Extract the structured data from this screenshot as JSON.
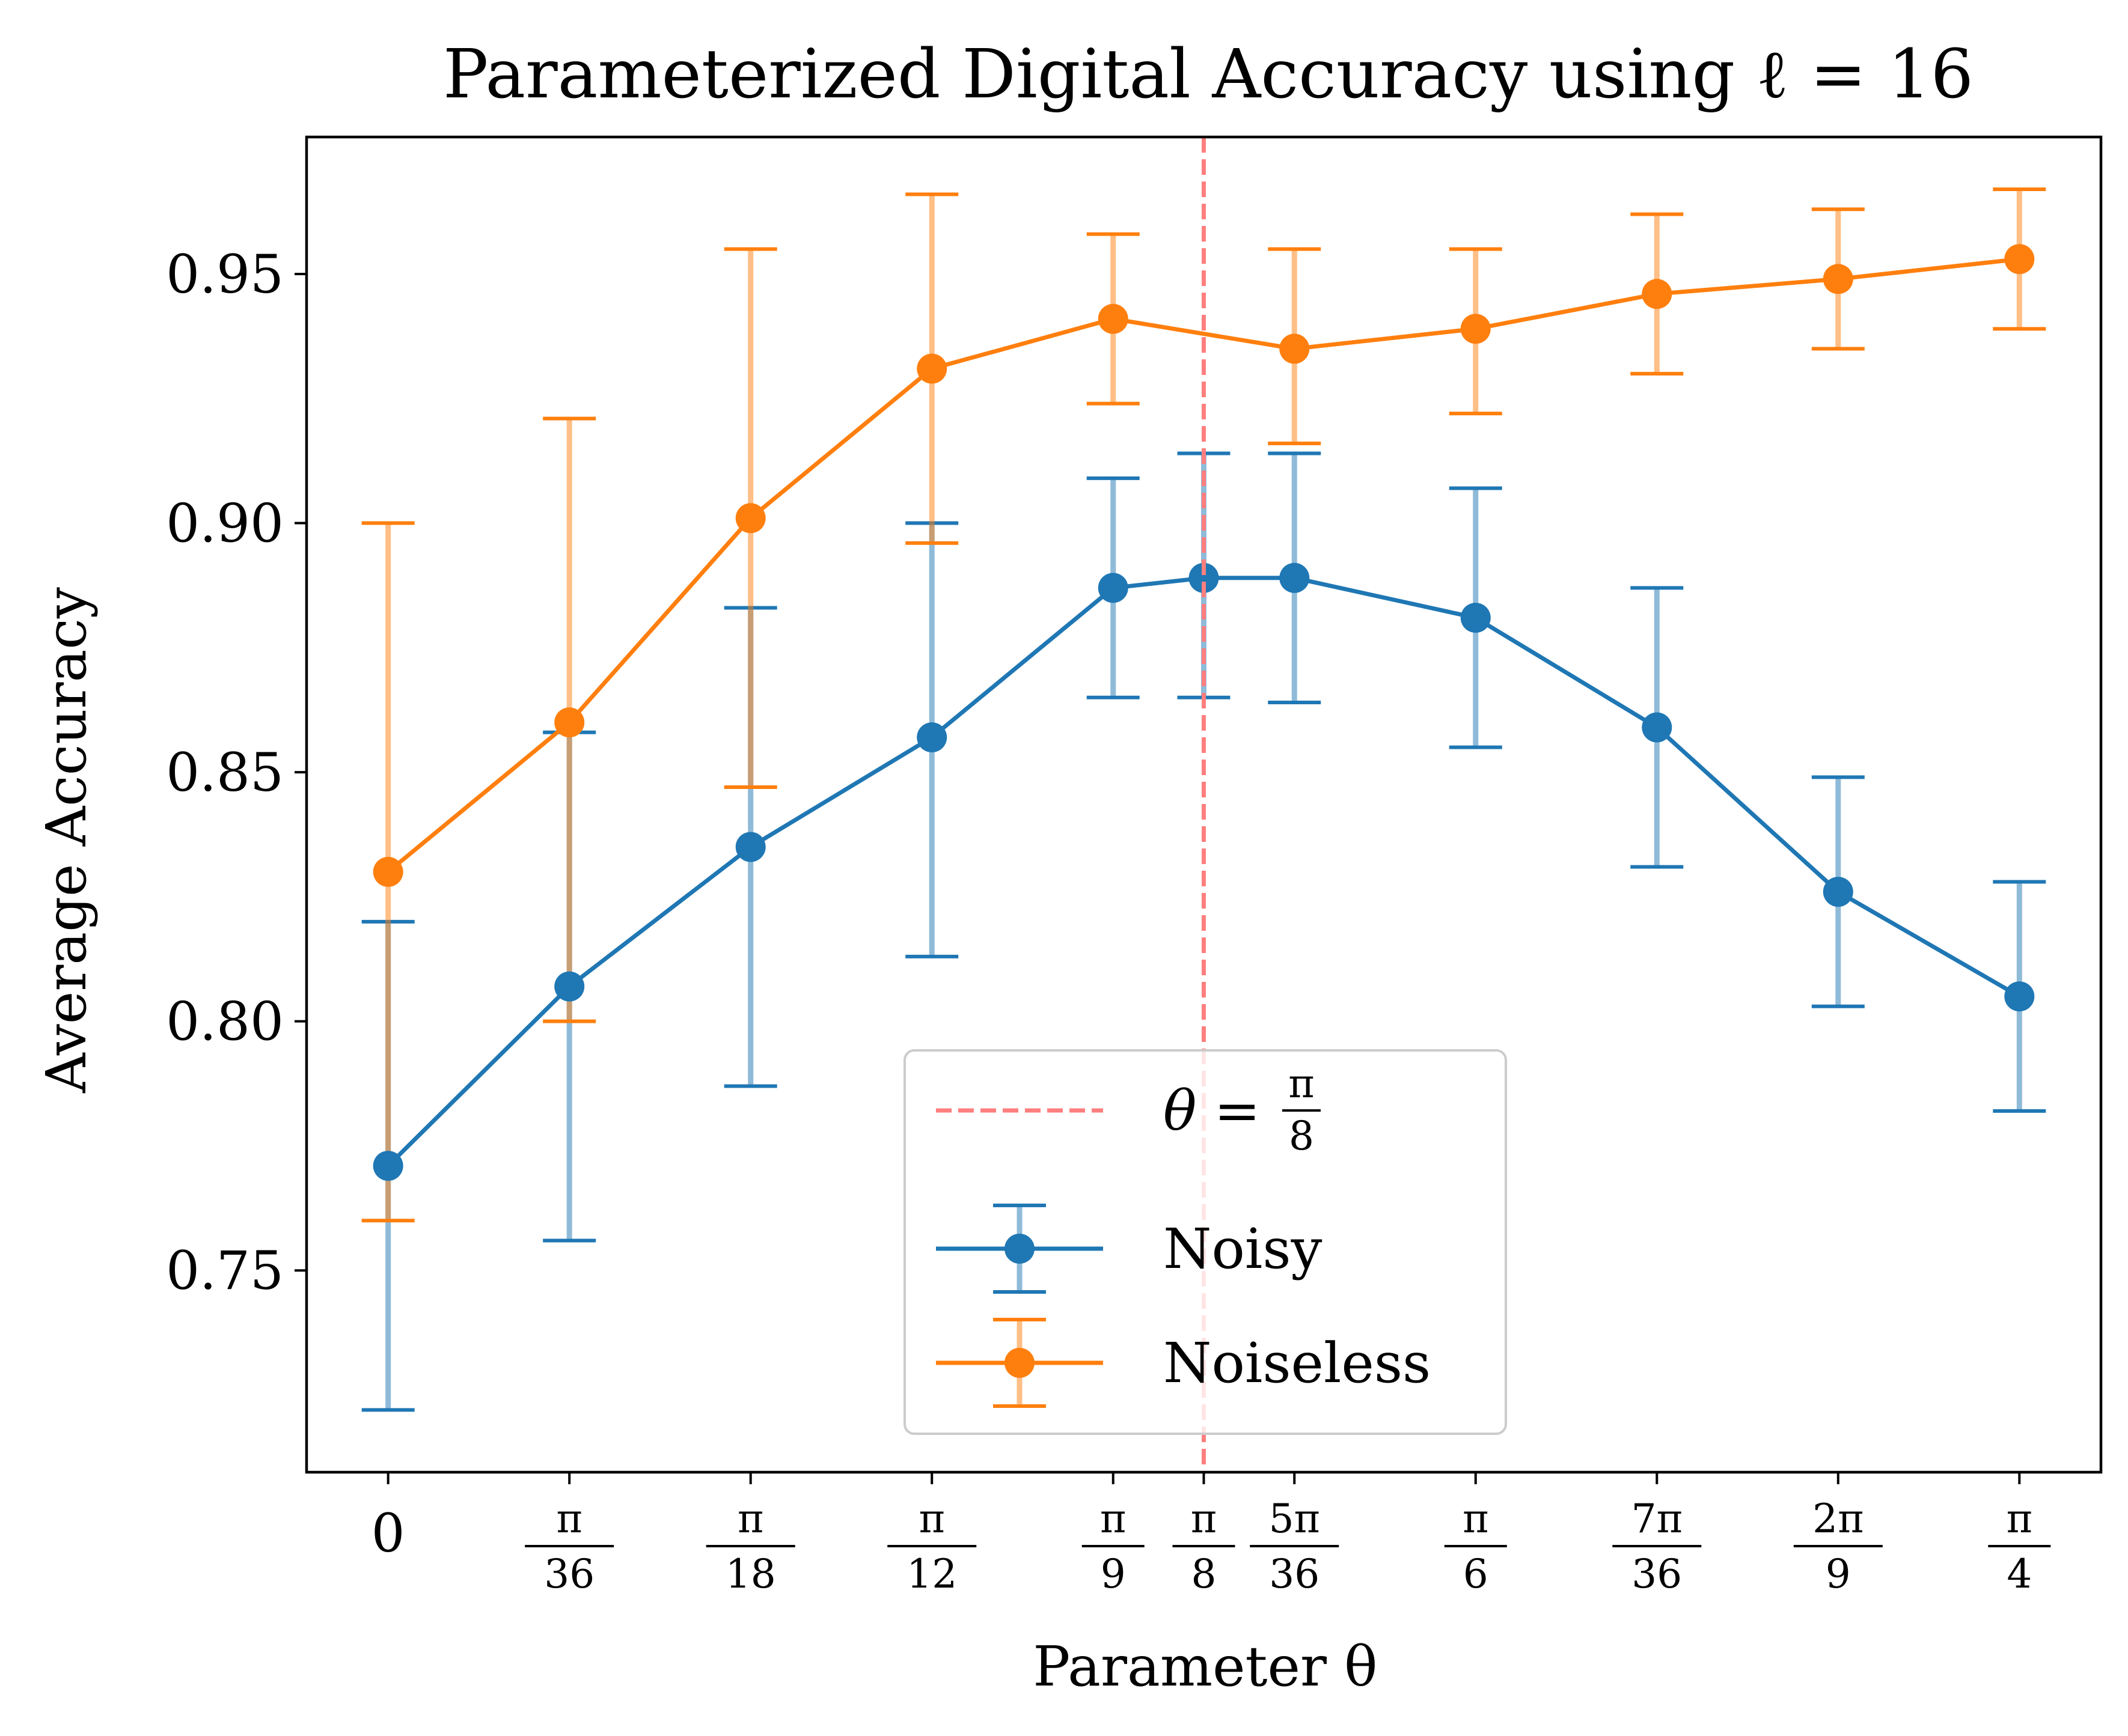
{
  "chart_data": {
    "type": "line",
    "title": "Parameterized Digital Accuracy using ℓ = 16",
    "xlabel": "Parameter θ",
    "ylabel": "Average Accuracy",
    "x": [
      0,
      1,
      2,
      3,
      4,
      4.5,
      5,
      6,
      7,
      8,
      9
    ],
    "x_tick_labels": [
      {
        "num": "",
        "den": "",
        "plain": "0"
      },
      {
        "num": "π",
        "den": "36",
        "plain": ""
      },
      {
        "num": "π",
        "den": "18",
        "plain": ""
      },
      {
        "num": "π",
        "den": "12",
        "plain": ""
      },
      {
        "num": "π",
        "den": "9",
        "plain": ""
      },
      {
        "num": "π",
        "den": "8",
        "plain": ""
      },
      {
        "num": "5π",
        "den": "36",
        "plain": ""
      },
      {
        "num": "π",
        "den": "6",
        "plain": ""
      },
      {
        "num": "7π",
        "den": "36",
        "plain": ""
      },
      {
        "num": "2π",
        "den": "9",
        "plain": ""
      },
      {
        "num": "π",
        "den": "4",
        "plain": ""
      }
    ],
    "y_ticks": [
      0.75,
      0.8,
      0.85,
      0.9,
      0.95
    ],
    "y_tick_labels": [
      "0.75",
      "0.80",
      "0.85",
      "0.90",
      "0.95"
    ],
    "xlim": [
      -0.45,
      9.45
    ],
    "ylim": [
      0.7095,
      0.9775
    ],
    "series": [
      {
        "name": "Noisy",
        "color": "#1f77b4",
        "values": [
          0.771,
          0.807,
          0.835,
          0.857,
          0.887,
          0.889,
          0.889,
          0.881,
          0.859,
          0.826,
          0.805
        ],
        "err_low": [
          0.722,
          0.756,
          0.787,
          0.813,
          0.865,
          0.865,
          0.864,
          0.855,
          0.831,
          0.803,
          0.782
        ],
        "err_high": [
          0.82,
          0.858,
          0.883,
          0.9,
          0.909,
          0.914,
          0.914,
          0.907,
          0.887,
          0.849,
          0.828
        ]
      },
      {
        "name": "Noiseless",
        "color": "#ff7f0e",
        "values": [
          0.83,
          0.86,
          0.901,
          0.931,
          0.941,
          null,
          0.935,
          0.939,
          0.946,
          0.949,
          0.953
        ],
        "err_low": [
          0.76,
          0.8,
          0.847,
          0.896,
          0.924,
          null,
          0.916,
          0.922,
          0.93,
          0.935,
          0.939
        ],
        "err_high": [
          0.9,
          0.921,
          0.955,
          0.966,
          0.958,
          null,
          0.955,
          0.955,
          0.962,
          0.963,
          0.967
        ]
      }
    ],
    "vline": {
      "x": 4.5,
      "color": "#ff7f7f",
      "label_lhs": "θ =",
      "label_num": "π",
      "label_den": "8"
    },
    "legend": {
      "position": "bottom-center",
      "entries": [
        "Noisy",
        "Noiseless"
      ]
    },
    "grid": false
  }
}
